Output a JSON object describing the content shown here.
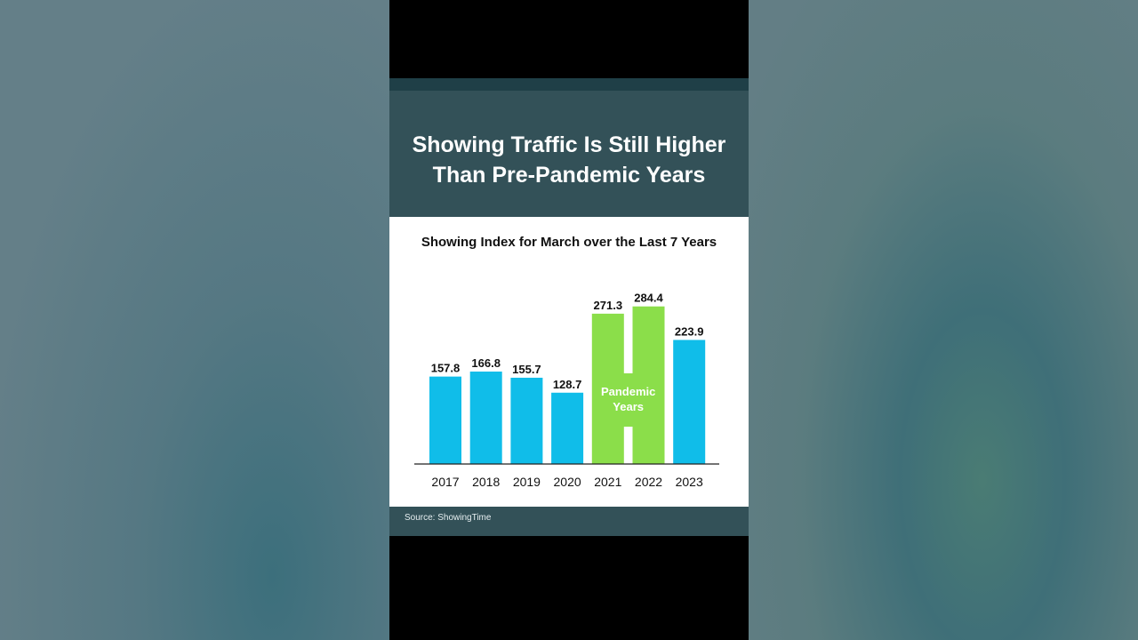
{
  "header": {
    "title_line1": "Showing Traffic Is Still Higher",
    "title_line2": "Than Pre-Pandemic Years"
  },
  "footer": {
    "source": "Source: ShowingTime"
  },
  "chart_data": {
    "type": "bar",
    "title": "Showing Index for March over the Last 7 Years",
    "categories": [
      "2017",
      "2018",
      "2019",
      "2020",
      "2021",
      "2022",
      "2023"
    ],
    "values": [
      157.8,
      166.8,
      155.7,
      128.7,
      271.3,
      284.4,
      223.9
    ],
    "data_labels": [
      "157.8",
      "166.8",
      "155.7",
      "128.7",
      "271.3",
      "284.4",
      "223.9"
    ],
    "highlight": {
      "categories": [
        "2021",
        "2022"
      ],
      "label_line1": "Pandemic",
      "label_line2": "Years",
      "color": "#8bde4a"
    },
    "bar_color": "#10bde9",
    "xlabel": "",
    "ylabel": "",
    "ylim": [
      0,
      300
    ],
    "grid": false,
    "legend": "none"
  }
}
